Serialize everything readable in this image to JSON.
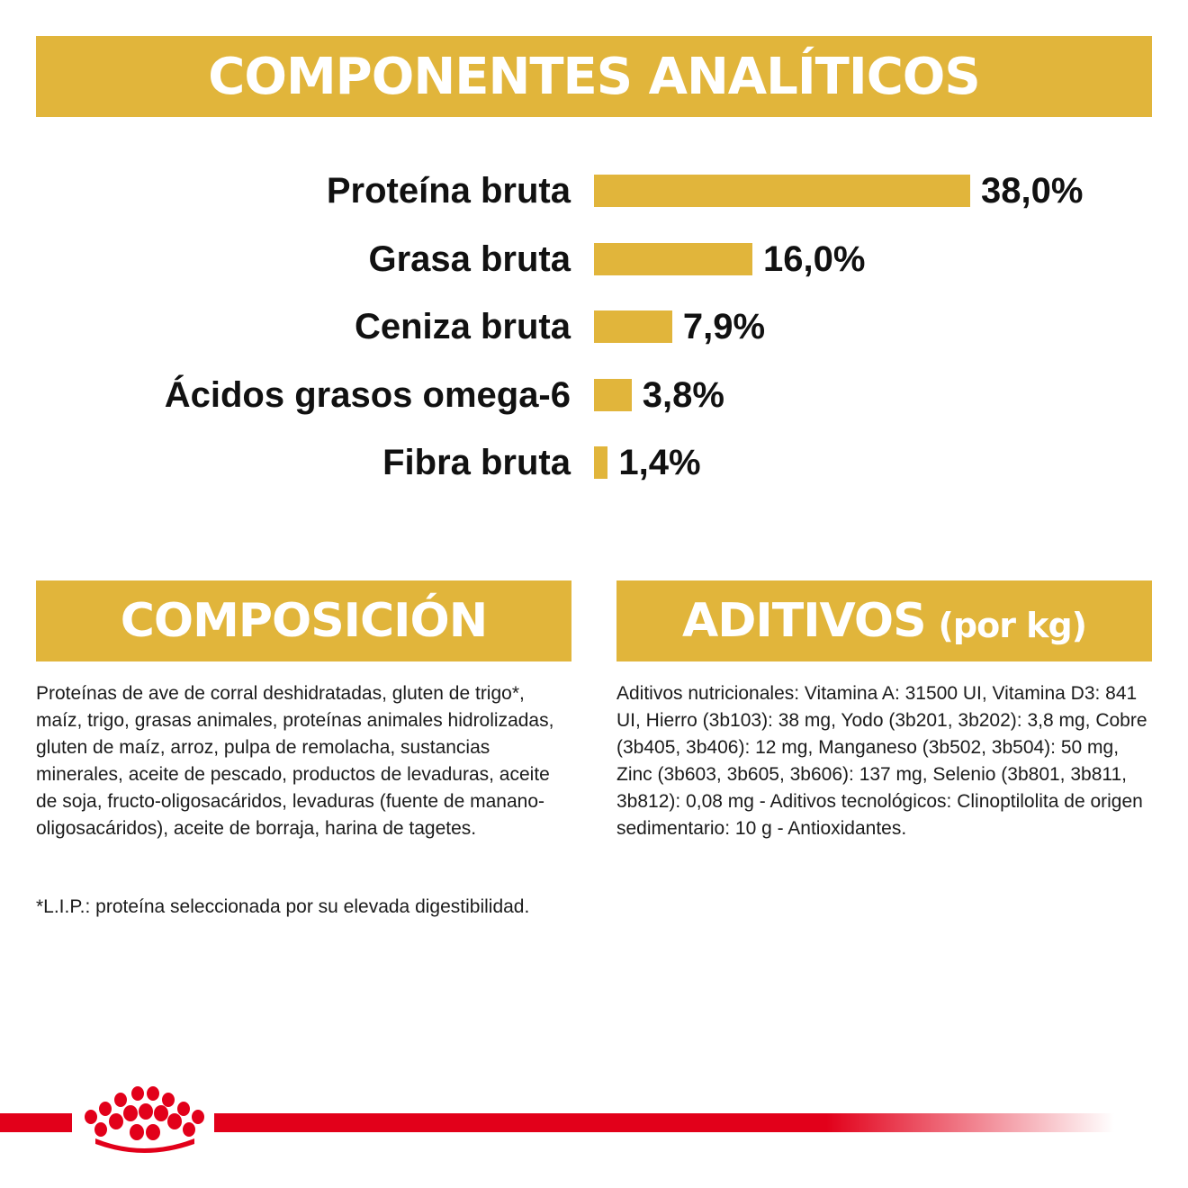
{
  "top_banner": {
    "title": "COMPONENTES ANALÍTICOS"
  },
  "chart_data": {
    "type": "bar",
    "orientation": "horizontal",
    "categories": [
      "Proteína bruta",
      "Grasa bruta",
      "Ceniza bruta",
      "Ácidos grasos omega-6",
      "Fibra bruta"
    ],
    "values": [
      38.0,
      16.0,
      7.9,
      3.8,
      1.4
    ],
    "value_labels": [
      "38,0%",
      "16,0%",
      "7,9%",
      "3,8%",
      "1,4%"
    ],
    "unit": "%",
    "bar_color": "#e1b53b",
    "grid": false
  },
  "composicion": {
    "title": "COMPOSICIÓN",
    "text": "Proteínas de ave de corral deshidratadas, gluten de trigo*, maíz, trigo, grasas animales, proteínas animales hidrolizadas, gluten de maíz, arroz, pulpa de remolacha, sustancias minerales, aceite de pescado, productos de levaduras, aceite de soja, fructo-oligosacáridos, levaduras (fuente de manano-oligosacáridos), aceite de borraja, harina de tagetes.",
    "footnote": "*L.I.P.: proteína seleccionada por su elevada digestibilidad."
  },
  "aditivos": {
    "title": "ADITIVOS",
    "subtitle": "(por kg)",
    "text": "Aditivos nutricionales: Vitamina A: 31500 UI, Vitamina D3: 841 UI, Hierro (3b103): 38 mg, Yodo (3b201, 3b202): 3,8 mg, Cobre (3b405, 3b406): 12 mg, Manganeso (3b502, 3b504): 50 mg, Zinc (3b603, 3b605, 3b606): 137 mg, Selenio (3b801, 3b811, 3b812): 0,08 mg - Aditivos tecnológicos: Clinoptilolita de origen sedimentario: 10 g - Antioxidantes."
  },
  "colors": {
    "accent": "#e1b53b",
    "brand_red": "#e2001a",
    "text": "#111111"
  },
  "brand": {
    "icon": "crown-icon"
  }
}
